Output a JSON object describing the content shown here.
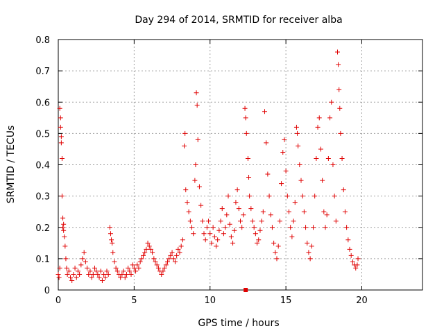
{
  "chart_data": {
    "type": "scatter",
    "title": "Day 294 of 2014, SRMTID for receiver alba",
    "xlabel": "GPS time / hours",
    "ylabel": "SRMTID / TECUs",
    "xlim": [
      0,
      24
    ],
    "ylim": [
      0,
      0.8
    ],
    "x_ticks": [
      0,
      5,
      10,
      15,
      20
    ],
    "x_tick_labels": [
      "0",
      "5",
      "10",
      "15",
      "20"
    ],
    "y_ticks": [
      0,
      0.1,
      0.2,
      0.3,
      0.4,
      0.5,
      0.6,
      0.7,
      0.8
    ],
    "y_tick_labels": [
      "0",
      "0.1",
      "0.2",
      "0.3",
      "0.4",
      "0.5",
      "0.6",
      "0.7",
      "0.8"
    ],
    "grid": true,
    "marker": "plus",
    "series": [
      {
        "name": "SRMTID",
        "color": "#e00000",
        "points": [
          [
            0.0,
            0.05
          ],
          [
            0.05,
            0.04
          ],
          [
            0.1,
            0.07
          ],
          [
            0.1,
            0.58
          ],
          [
            0.15,
            0.55
          ],
          [
            0.15,
            0.52
          ],
          [
            0.2,
            0.49
          ],
          [
            0.2,
            0.47
          ],
          [
            0.25,
            0.42
          ],
          [
            0.25,
            0.3
          ],
          [
            0.3,
            0.23
          ],
          [
            0.3,
            0.2
          ],
          [
            0.35,
            0.21
          ],
          [
            0.35,
            0.19
          ],
          [
            0.4,
            0.17
          ],
          [
            0.45,
            0.14
          ],
          [
            0.5,
            0.1
          ],
          [
            0.55,
            0.07
          ],
          [
            0.6,
            0.05
          ],
          [
            0.7,
            0.06
          ],
          [
            0.8,
            0.04
          ],
          [
            0.9,
            0.03
          ],
          [
            1.0,
            0.05
          ],
          [
            1.1,
            0.07
          ],
          [
            1.2,
            0.04
          ],
          [
            1.3,
            0.06
          ],
          [
            1.4,
            0.05
          ],
          [
            1.5,
            0.08
          ],
          [
            1.6,
            0.1
          ],
          [
            1.7,
            0.12
          ],
          [
            1.8,
            0.09
          ],
          [
            1.9,
            0.07
          ],
          [
            2.0,
            0.05
          ],
          [
            2.1,
            0.06
          ],
          [
            2.2,
            0.04
          ],
          [
            2.3,
            0.05
          ],
          [
            2.4,
            0.07
          ],
          [
            2.5,
            0.06
          ],
          [
            2.6,
            0.05
          ],
          [
            2.7,
            0.04
          ],
          [
            2.8,
            0.06
          ],
          [
            2.9,
            0.03
          ],
          [
            3.0,
            0.05
          ],
          [
            3.1,
            0.04
          ],
          [
            3.2,
            0.06
          ],
          [
            3.3,
            0.05
          ],
          [
            3.4,
            0.2
          ],
          [
            3.45,
            0.18
          ],
          [
            3.5,
            0.16
          ],
          [
            3.55,
            0.15
          ],
          [
            3.6,
            0.12
          ],
          [
            3.7,
            0.09
          ],
          [
            3.8,
            0.07
          ],
          [
            3.9,
            0.06
          ],
          [
            4.0,
            0.05
          ],
          [
            4.1,
            0.04
          ],
          [
            4.2,
            0.05
          ],
          [
            4.3,
            0.06
          ],
          [
            4.4,
            0.04
          ],
          [
            4.5,
            0.05
          ],
          [
            4.6,
            0.07
          ],
          [
            4.7,
            0.06
          ],
          [
            4.8,
            0.05
          ],
          [
            4.9,
            0.08
          ],
          [
            5.0,
            0.07
          ],
          [
            5.1,
            0.06
          ],
          [
            5.2,
            0.08
          ],
          [
            5.3,
            0.07
          ],
          [
            5.4,
            0.09
          ],
          [
            5.5,
            0.1
          ],
          [
            5.6,
            0.11
          ],
          [
            5.7,
            0.12
          ],
          [
            5.8,
            0.13
          ],
          [
            5.9,
            0.15
          ],
          [
            6.0,
            0.14
          ],
          [
            6.1,
            0.13
          ],
          [
            6.2,
            0.12
          ],
          [
            6.3,
            0.1
          ],
          [
            6.4,
            0.09
          ],
          [
            6.5,
            0.08
          ],
          [
            6.6,
            0.07
          ],
          [
            6.7,
            0.06
          ],
          [
            6.8,
            0.05
          ],
          [
            6.9,
            0.06
          ],
          [
            7.0,
            0.07
          ],
          [
            7.1,
            0.08
          ],
          [
            7.2,
            0.09
          ],
          [
            7.3,
            0.1
          ],
          [
            7.4,
            0.11
          ],
          [
            7.5,
            0.12
          ],
          [
            7.6,
            0.1
          ],
          [
            7.7,
            0.09
          ],
          [
            7.8,
            0.11
          ],
          [
            7.9,
            0.13
          ],
          [
            8.0,
            0.12
          ],
          [
            8.1,
            0.14
          ],
          [
            8.2,
            0.16
          ],
          [
            8.3,
            0.46
          ],
          [
            8.35,
            0.5
          ],
          [
            8.4,
            0.32
          ],
          [
            8.5,
            0.28
          ],
          [
            8.6,
            0.25
          ],
          [
            8.7,
            0.22
          ],
          [
            8.8,
            0.2
          ],
          [
            8.9,
            0.18
          ],
          [
            9.0,
            0.35
          ],
          [
            9.05,
            0.4
          ],
          [
            9.1,
            0.63
          ],
          [
            9.15,
            0.59
          ],
          [
            9.2,
            0.48
          ],
          [
            9.3,
            0.33
          ],
          [
            9.4,
            0.27
          ],
          [
            9.5,
            0.22
          ],
          [
            9.6,
            0.18
          ],
          [
            9.7,
            0.16
          ],
          [
            9.8,
            0.2
          ],
          [
            9.9,
            0.22
          ],
          [
            10.0,
            0.18
          ],
          [
            10.1,
            0.15
          ],
          [
            10.2,
            0.2
          ],
          [
            10.3,
            0.17
          ],
          [
            10.4,
            0.14
          ],
          [
            10.5,
            0.16
          ],
          [
            10.6,
            0.19
          ],
          [
            10.7,
            0.22
          ],
          [
            10.8,
            0.26
          ],
          [
            10.9,
            0.18
          ],
          [
            11.0,
            0.2
          ],
          [
            11.1,
            0.24
          ],
          [
            11.2,
            0.3
          ],
          [
            11.3,
            0.21
          ],
          [
            11.4,
            0.17
          ],
          [
            11.5,
            0.15
          ],
          [
            11.6,
            0.19
          ],
          [
            11.7,
            0.28
          ],
          [
            11.8,
            0.32
          ],
          [
            11.9,
            0.26
          ],
          [
            12.0,
            0.22
          ],
          [
            12.1,
            0.2
          ],
          [
            12.2,
            0.24
          ],
          [
            12.3,
            0.58
          ],
          [
            12.35,
            0.55
          ],
          [
            12.4,
            0.5
          ],
          [
            12.5,
            0.42
          ],
          [
            12.55,
            0.36
          ],
          [
            12.6,
            0.3
          ],
          [
            12.7,
            0.26
          ],
          [
            12.8,
            0.22
          ],
          [
            12.9,
            0.2
          ],
          [
            13.0,
            0.18
          ],
          [
            13.1,
            0.15
          ],
          [
            13.2,
            0.16
          ],
          [
            13.3,
            0.19
          ],
          [
            13.4,
            0.22
          ],
          [
            13.5,
            0.25
          ],
          [
            13.6,
            0.57
          ],
          [
            13.7,
            0.47
          ],
          [
            13.8,
            0.37
          ],
          [
            13.9,
            0.3
          ],
          [
            14.0,
            0.24
          ],
          [
            14.1,
            0.2
          ],
          [
            14.2,
            0.15
          ],
          [
            14.3,
            0.12
          ],
          [
            14.4,
            0.1
          ],
          [
            14.5,
            0.14
          ],
          [
            14.6,
            0.22
          ],
          [
            14.7,
            0.34
          ],
          [
            14.8,
            0.44
          ],
          [
            14.9,
            0.48
          ],
          [
            15.0,
            0.38
          ],
          [
            15.1,
            0.3
          ],
          [
            15.2,
            0.25
          ],
          [
            15.3,
            0.2
          ],
          [
            15.4,
            0.17
          ],
          [
            15.5,
            0.22
          ],
          [
            15.6,
            0.28
          ],
          [
            15.7,
            0.52
          ],
          [
            15.75,
            0.5
          ],
          [
            15.8,
            0.46
          ],
          [
            15.9,
            0.4
          ],
          [
            16.0,
            0.35
          ],
          [
            16.1,
            0.3
          ],
          [
            16.2,
            0.25
          ],
          [
            16.3,
            0.2
          ],
          [
            16.4,
            0.15
          ],
          [
            16.5,
            0.12
          ],
          [
            16.6,
            0.1
          ],
          [
            16.7,
            0.14
          ],
          [
            16.8,
            0.2
          ],
          [
            16.9,
            0.3
          ],
          [
            17.0,
            0.42
          ],
          [
            17.1,
            0.52
          ],
          [
            17.2,
            0.55
          ],
          [
            17.3,
            0.45
          ],
          [
            17.4,
            0.35
          ],
          [
            17.5,
            0.25
          ],
          [
            17.6,
            0.2
          ],
          [
            17.7,
            0.24
          ],
          [
            17.8,
            0.42
          ],
          [
            17.9,
            0.55
          ],
          [
            18.0,
            0.6
          ],
          [
            18.1,
            0.4
          ],
          [
            18.2,
            0.3
          ],
          [
            18.3,
            0.22
          ],
          [
            18.4,
            0.76
          ],
          [
            18.45,
            0.72
          ],
          [
            18.5,
            0.64
          ],
          [
            18.55,
            0.58
          ],
          [
            18.6,
            0.5
          ],
          [
            18.7,
            0.42
          ],
          [
            18.8,
            0.32
          ],
          [
            18.9,
            0.25
          ],
          [
            19.0,
            0.2
          ],
          [
            19.1,
            0.16
          ],
          [
            19.2,
            0.13
          ],
          [
            19.3,
            0.11
          ],
          [
            19.4,
            0.09
          ],
          [
            19.5,
            0.08
          ],
          [
            19.6,
            0.07
          ],
          [
            19.7,
            0.08
          ],
          [
            19.75,
            0.1
          ]
        ]
      },
      {
        "name": "markers",
        "color": "#e00000",
        "marker": "square",
        "points": [
          [
            12.35,
            0.0
          ]
        ]
      }
    ]
  }
}
